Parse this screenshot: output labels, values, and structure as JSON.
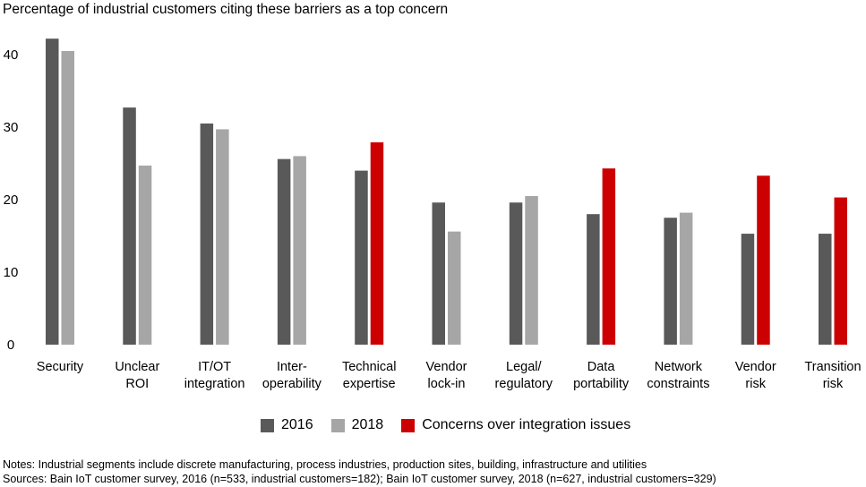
{
  "colors": {
    "s2016": "#595959",
    "s2018": "#a6a6a6",
    "integration": "#cc0000"
  },
  "title": "Percentage of industrial customers citing these barriers as a top concern",
  "legend": {
    "s2016": "2016",
    "s2018": "2018",
    "integration": "Concerns over integration issues"
  },
  "notes": {
    "line1": "Notes: Industrial segments include discrete manufacturing, process industries, production sites, building, infrastructure and utilities",
    "line2": "Sources: Bain IoT customer survey, 2016 (n=533, industrial customers=182); Bain IoT customer survey, 2018 (n=627, industrial customers=329)"
  },
  "chart_data": {
    "type": "bar",
    "title": "Percentage of industrial customers citing these barriers as a top concern",
    "xlabel": "",
    "ylabel": "",
    "ylim": [
      0,
      42
    ],
    "yticks": [
      0,
      10,
      20,
      30,
      40
    ],
    "grid": false,
    "legend_position": "bottom",
    "categories": [
      [
        "Security"
      ],
      [
        "Unclear",
        "ROI"
      ],
      [
        "IT/OT",
        "integration"
      ],
      [
        "Inter-",
        "operability"
      ],
      [
        "Technical",
        "expertise"
      ],
      [
        "Vendor",
        "lock-in"
      ],
      [
        "Legal/",
        "regulatory"
      ],
      [
        "Data",
        "portability"
      ],
      [
        "Network",
        "constraints"
      ],
      [
        "Vendor",
        "risk"
      ],
      [
        "Transition",
        "risk"
      ]
    ],
    "series": [
      {
        "name": "2016",
        "values": [
          42.2,
          32.7,
          30.5,
          25.6,
          24.0,
          19.6,
          19.6,
          18.0,
          17.5,
          15.3,
          15.3
        ]
      },
      {
        "name": "2018",
        "values": [
          40.5,
          24.7,
          29.7,
          26.0,
          27.9,
          15.6,
          20.5,
          24.3,
          18.2,
          23.3,
          20.3
        ],
        "highlight": [
          false,
          false,
          false,
          false,
          true,
          false,
          false,
          true,
          false,
          true,
          true
        ]
      }
    ]
  }
}
